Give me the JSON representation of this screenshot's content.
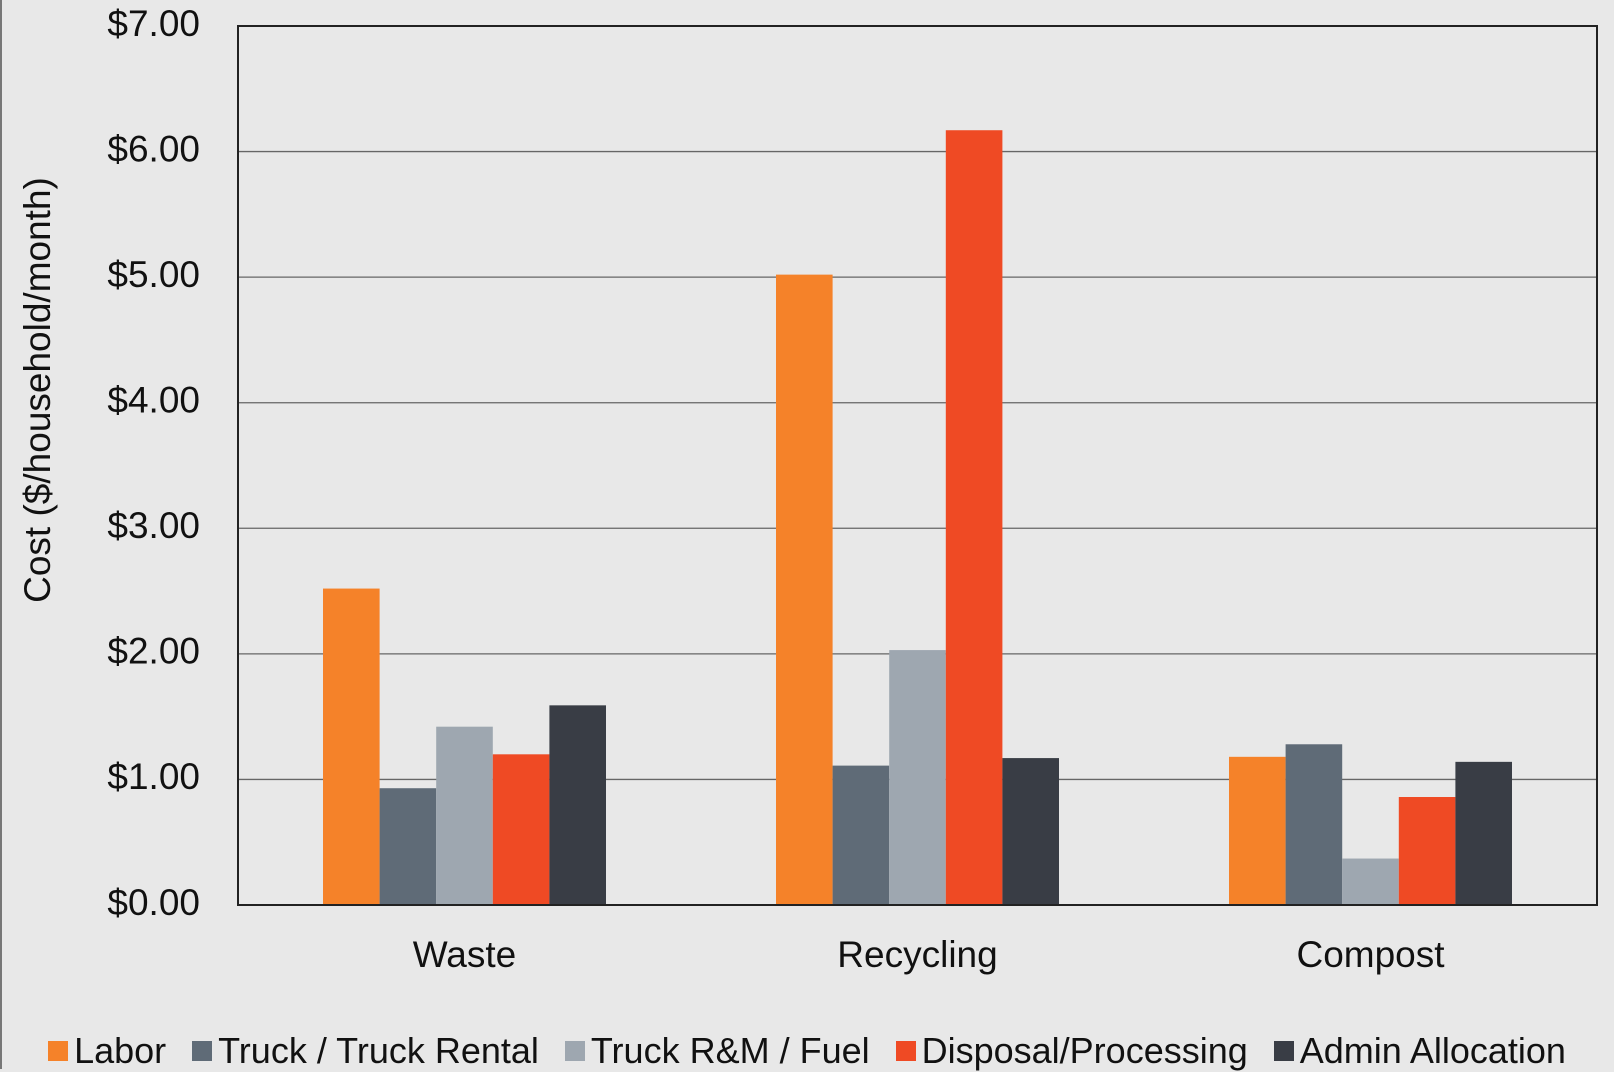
{
  "chart_data": {
    "type": "bar",
    "y_label": "Cost ($/household/month)",
    "categories": [
      "Waste",
      "Recycling",
      "Compost"
    ],
    "series": [
      {
        "name": "Labor",
        "color": "#f58229",
        "values": [
          2.52,
          5.02,
          1.18
        ]
      },
      {
        "name": "Truck / Truck Rental",
        "color": "#5f6b77",
        "values": [
          0.93,
          1.11,
          1.28
        ]
      },
      {
        "name": "Truck R&M / Fuel",
        "color": "#9ea7b0",
        "values": [
          1.42,
          2.03,
          0.37
        ]
      },
      {
        "name": "Disposal/Processing",
        "color": "#ef4a24",
        "values": [
          1.2,
          6.17,
          0.86
        ]
      },
      {
        "name": "Admin Allocation",
        "color": "#393d45",
        "values": [
          1.59,
          1.17,
          1.14
        ]
      }
    ],
    "ylim": [
      0,
      7
    ],
    "yticks": [
      {
        "value": 0,
        "label": "$0.00"
      },
      {
        "value": 1,
        "label": "$1.00"
      },
      {
        "value": 2,
        "label": "$2.00"
      },
      {
        "value": 3,
        "label": "$3.00"
      },
      {
        "value": 4,
        "label": "$4.00"
      },
      {
        "value": 5,
        "label": "$5.00"
      },
      {
        "value": 6,
        "label": "$6.00"
      },
      {
        "value": 7,
        "label": "$7.00"
      }
    ],
    "grid": true,
    "legend": "bottom"
  }
}
